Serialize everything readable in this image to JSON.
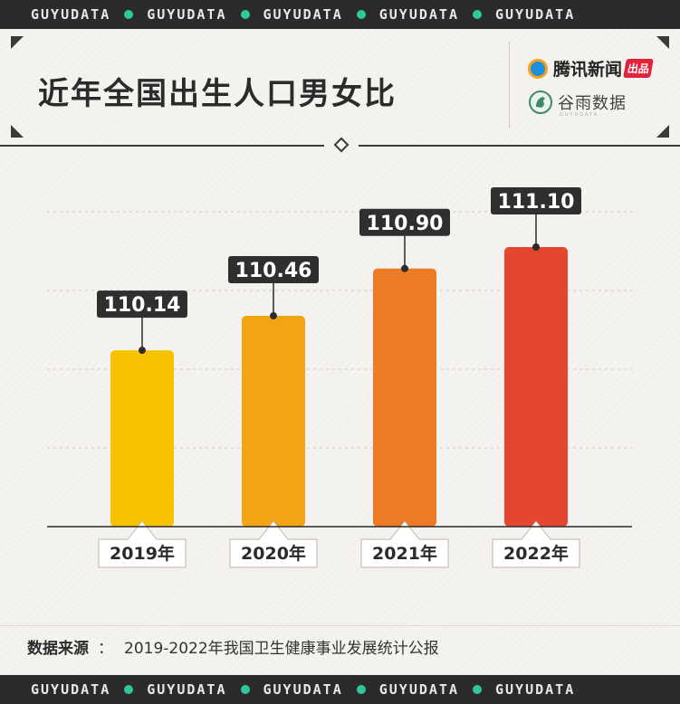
{
  "ticker": {
    "text": "GUYUDATA",
    "dot_color": "#2fc79b"
  },
  "header": {
    "title": "近年全国出生人口男女比",
    "logo_primary": "腾讯新闻",
    "logo_primary_badge": "出品",
    "logo_secondary": "谷雨数据",
    "logo_secondary_sub": "GUYUDATA"
  },
  "chart_data": {
    "type": "bar",
    "title": "近年全国出生人口男女比",
    "categories": [
      "2019年",
      "2020年",
      "2021年",
      "2022年"
    ],
    "values": [
      110.14,
      110.46,
      110.9,
      111.1
    ],
    "value_labels": [
      "110.14",
      "110.46",
      "110.90",
      "111.10"
    ],
    "colors": [
      "#f7c300",
      "#f3a412",
      "#ec7b27",
      "#e4462f"
    ],
    "grid": "dashed horizontal",
    "legend": "none"
  },
  "footer": {
    "source_label": "数据来源",
    "source_colon": "：",
    "source_text": "2019-2022年我国卫生健康事业发展统计公报"
  }
}
